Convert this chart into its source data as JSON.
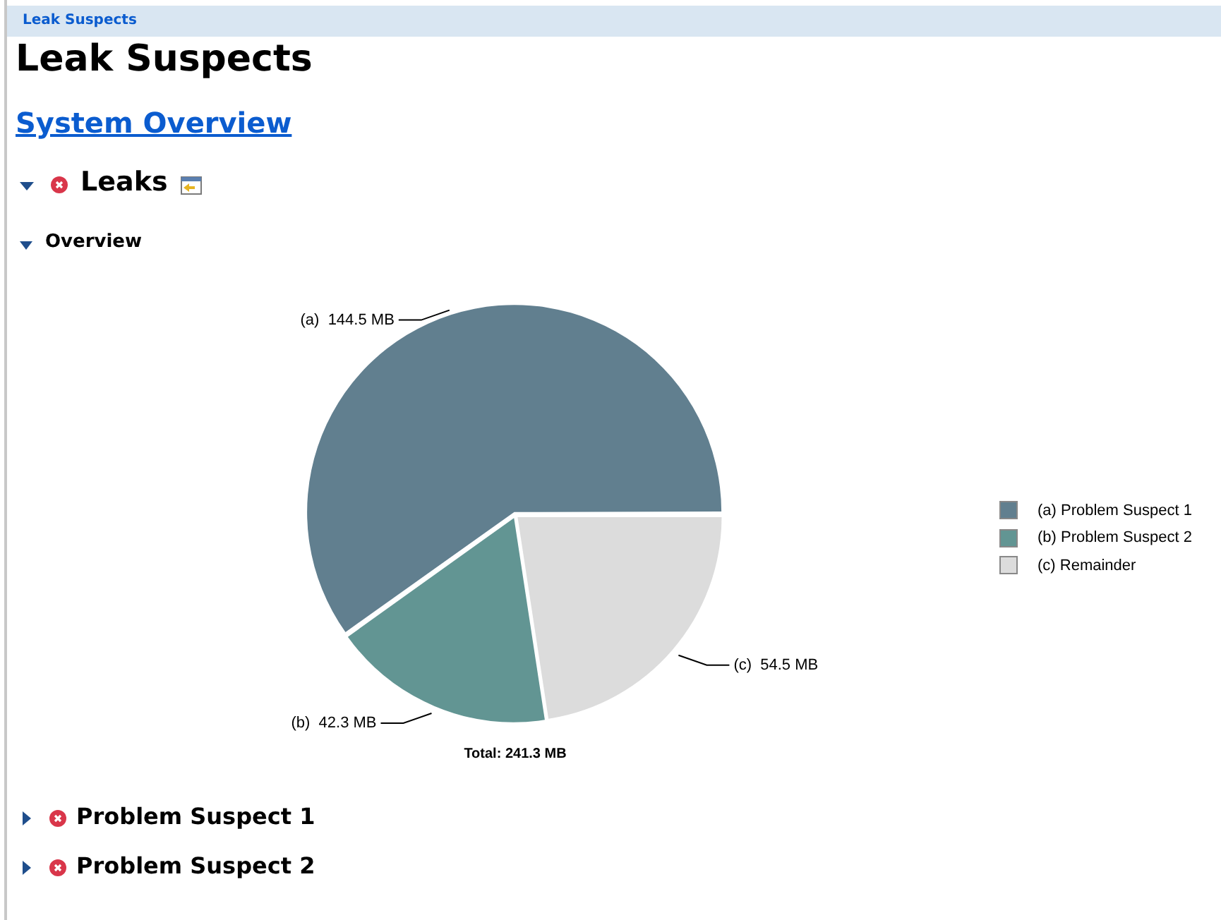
{
  "chart_data": {
    "type": "pie",
    "title": "Leak Suspects",
    "categories": [
      "(a)  Problem Suspect 1",
      "(b)  Problem Suspect 2",
      "(c)  Remainder"
    ],
    "values": [
      144.5,
      42.3,
      54.5
    ],
    "colors": [
      "#617f8f",
      "#629593",
      "#dcdcdc"
    ],
    "value_labels": [
      "(a)  144.5 MB",
      "(b)  42.3 MB",
      "(c)  54.5 MB"
    ],
    "legend": "right",
    "annotations": [
      "Leak Suspects",
      "System Overview",
      "Leaks",
      "Overview",
      "Total: 241.3 MB",
      "Problem Suspect 1",
      "Problem Suspect 2"
    ]
  }
}
